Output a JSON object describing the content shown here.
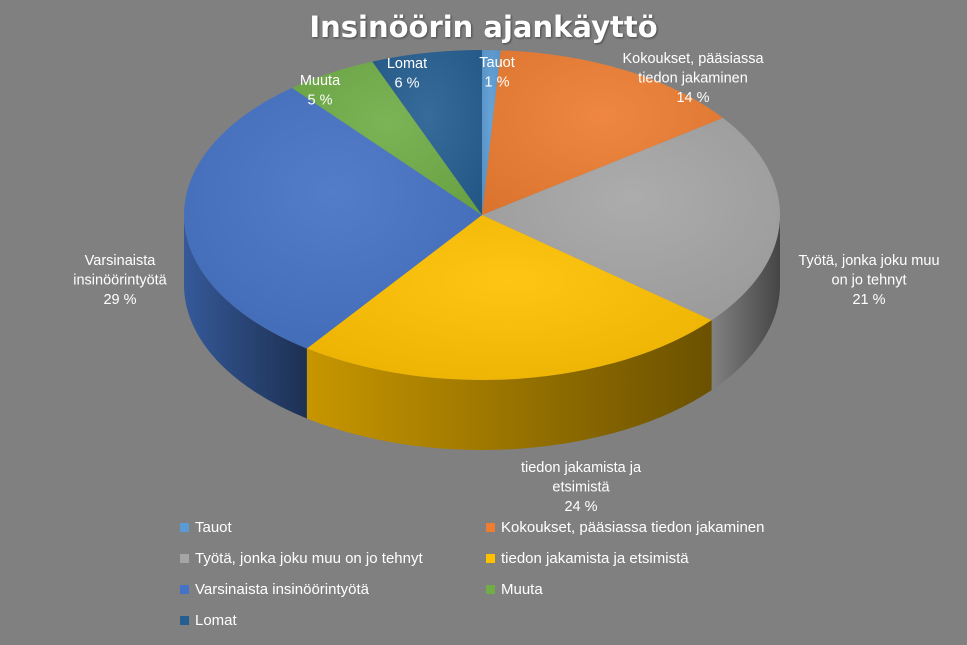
{
  "chart_data": {
    "type": "pie",
    "title": "Insinöörin ajankäyttö",
    "slices": [
      {
        "label": "Tauot",
        "value": 1,
        "value_label": "1 %",
        "color": "#5b9bd5",
        "label_lines": [
          "Tauot",
          "1 %"
        ]
      },
      {
        "label": "Kokoukset, pääsiassa tiedon jakaminen",
        "value": 14,
        "value_label": "14 %",
        "color": "#ed7d31",
        "label_lines": [
          "Kokoukset, pääsiassa",
          "tiedon jakaminen",
          "14 %"
        ]
      },
      {
        "label": "Työtä, jonka joku muu on jo tehnyt",
        "value": 21,
        "value_label": "21 %",
        "color": "#a5a5a5",
        "label_lines": [
          "Työtä, jonka joku muu",
          "on jo tehnyt",
          "21 %"
        ]
      },
      {
        "label": "tiedon jakamista ja etsimistä",
        "value": 24,
        "value_label": "24 %",
        "color": "#ffc000",
        "label_lines": [
          "tiedon jakamista ja",
          "etsimistä",
          "24 %"
        ]
      },
      {
        "label": "Varsinaista insinöörintyötä",
        "value": 29,
        "value_label": "29 %",
        "color": "#4472c4",
        "label_lines": [
          "Varsinaista",
          "insinöörintyötä",
          "29 %"
        ]
      },
      {
        "label": "Muuta",
        "value": 5,
        "value_label": "5 %",
        "color": "#70ad47",
        "label_lines": [
          "Muuta",
          "5 %"
        ]
      },
      {
        "label": "Lomat",
        "value": 6,
        "value_label": "6 %",
        "color": "#255e91",
        "label_lines": [
          "Lomat",
          "6 %"
        ]
      }
    ],
    "legend_position": "bottom",
    "style": "3d-pie"
  },
  "colors": {
    "background": "#808080",
    "text": "#ffffff"
  }
}
